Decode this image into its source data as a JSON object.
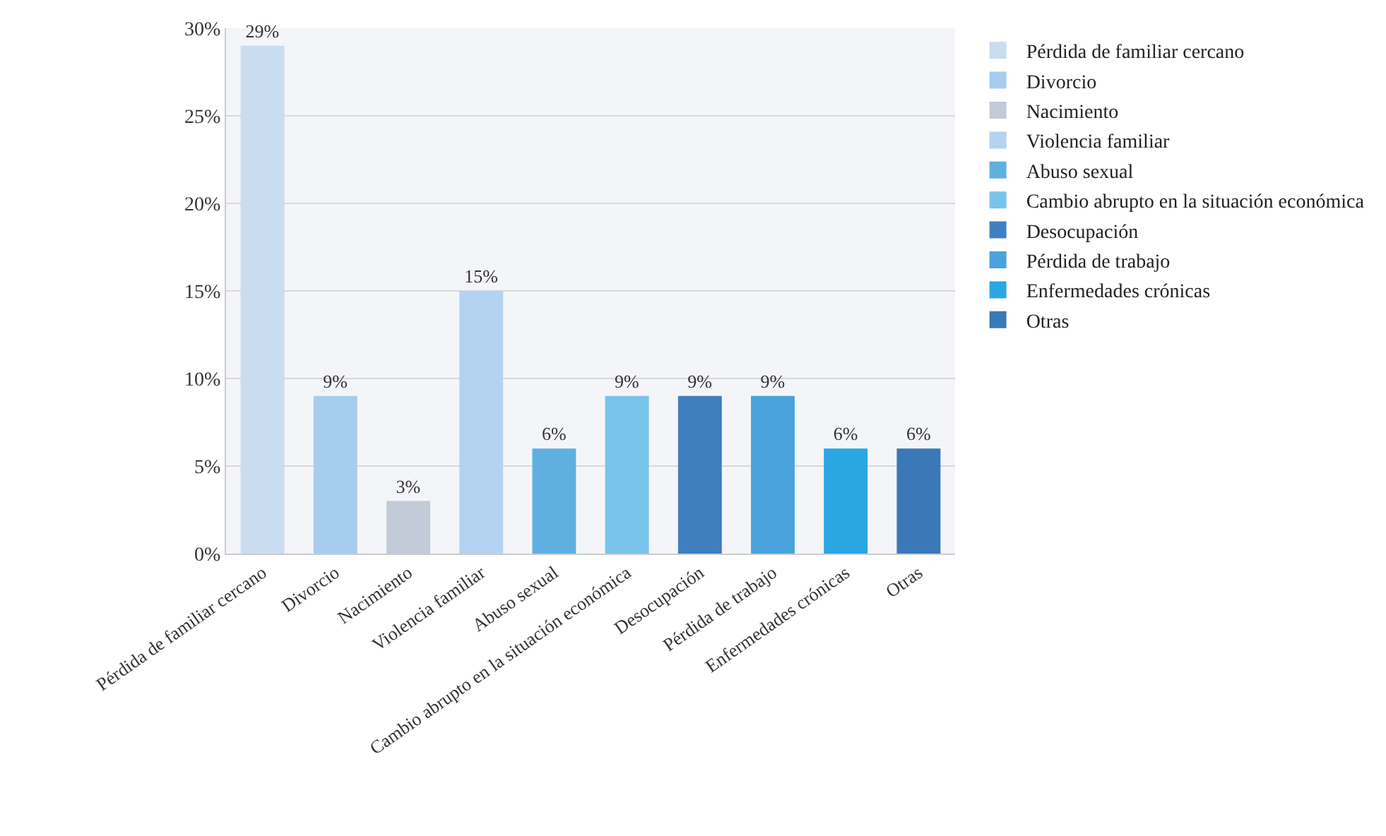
{
  "chart_data": {
    "type": "bar",
    "categories": [
      "Pérdida de familiar cercano",
      "Divorcio",
      "Nacimiento",
      "Violencia familiar",
      "Abuso sexual",
      "Cambio abrupto en la situación económica",
      "Desocupación",
      "Pérdida de trabajo",
      "Enfermedades crónicas",
      "Otras"
    ],
    "series": [
      {
        "name": "Pérdida de familiar cercano",
        "color": "#c9dcf0",
        "values": [
          29,
          null,
          null,
          null,
          null,
          null,
          null,
          null,
          null,
          null
        ],
        "value_labels": [
          "29%",
          null,
          null,
          null,
          null,
          null,
          null,
          null,
          null,
          null
        ]
      },
      {
        "name": "Divorcio",
        "color": "#a6cdee",
        "values": [
          null,
          9,
          null,
          null,
          null,
          null,
          null,
          null,
          null,
          null
        ],
        "value_labels": [
          null,
          "9%",
          null,
          null,
          null,
          null,
          null,
          null,
          null,
          null
        ]
      },
      {
        "name": "Nacimiento",
        "color": "#c3cad8",
        "values": [
          null,
          null,
          3,
          null,
          null,
          null,
          null,
          null,
          null,
          null
        ],
        "value_labels": [
          null,
          null,
          "3%",
          null,
          null,
          null,
          null,
          null,
          null,
          null
        ]
      },
      {
        "name": "Violencia familiar",
        "color": "#b3d3f0",
        "values": [
          null,
          null,
          null,
          15,
          null,
          null,
          null,
          null,
          null,
          null
        ],
        "value_labels": [
          null,
          null,
          null,
          "15%",
          null,
          null,
          null,
          null,
          null,
          null
        ]
      },
      {
        "name": "Abuso sexual",
        "color": "#5fb0e0",
        "values": [
          null,
          null,
          null,
          null,
          6,
          null,
          null,
          null,
          null,
          null
        ],
        "value_labels": [
          null,
          null,
          null,
          null,
          "6%",
          null,
          null,
          null,
          null,
          null
        ]
      },
      {
        "name": "Cambio abrupto en la situación económica",
        "color": "#79c3ea",
        "values": [
          null,
          null,
          null,
          null,
          null,
          9,
          null,
          null,
          null,
          null
        ],
        "value_labels": [
          null,
          null,
          null,
          null,
          null,
          "9%",
          null,
          null,
          null,
          null
        ]
      },
      {
        "name": "Desocupación",
        "color": "#3f7fc0",
        "values": [
          null,
          null,
          null,
          null,
          null,
          null,
          9,
          null,
          null,
          null
        ],
        "value_labels": [
          null,
          null,
          null,
          null,
          null,
          null,
          "9%",
          null,
          null,
          null
        ]
      },
      {
        "name": "Pérdida de trabajo",
        "color": "#4aa3dc",
        "values": [
          null,
          null,
          null,
          null,
          null,
          null,
          null,
          9,
          null,
          null
        ],
        "value_labels": [
          null,
          null,
          null,
          null,
          null,
          null,
          null,
          "9%",
          null,
          null
        ]
      },
      {
        "name": "Enfermedades crónicas",
        "color": "#2aa6e2",
        "values": [
          null,
          null,
          null,
          null,
          null,
          null,
          null,
          null,
          6,
          null
        ],
        "value_labels": [
          null,
          null,
          null,
          null,
          null,
          null,
          null,
          null,
          "6%",
          null
        ]
      },
      {
        "name": "Otras",
        "color": "#3a78b8",
        "values": [
          null,
          null,
          null,
          null,
          null,
          null,
          null,
          null,
          null,
          6
        ],
        "value_labels": [
          null,
          null,
          null,
          null,
          null,
          null,
          null,
          null,
          null,
          "6%"
        ]
      }
    ],
    "ylim": [
      0,
      30
    ],
    "yticks": [
      {
        "value": 0,
        "label": "0%"
      },
      {
        "value": 5,
        "label": "5%"
      },
      {
        "value": 10,
        "label": "10%"
      },
      {
        "value": 15,
        "label": "15%"
      },
      {
        "value": 20,
        "label": "20%"
      },
      {
        "value": 25,
        "label": "25%"
      },
      {
        "value": 30,
        "label": "30%"
      }
    ],
    "grid": true,
    "legend": "right"
  }
}
